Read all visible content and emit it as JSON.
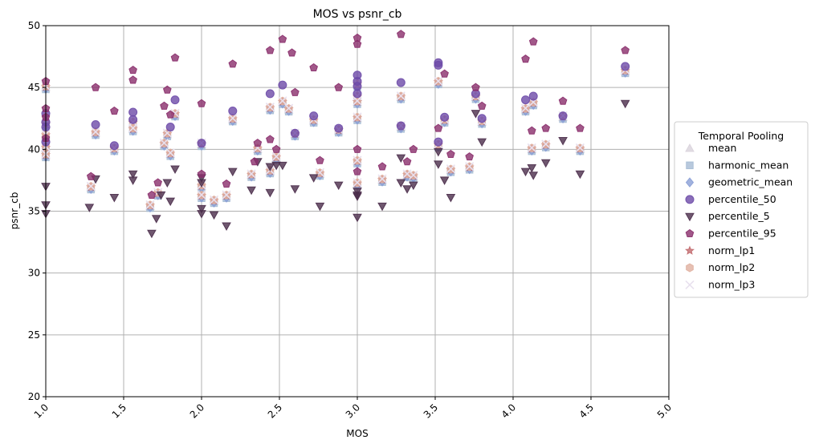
{
  "chart_data": {
    "type": "scatter",
    "title": "MOS vs psnr_cb",
    "xlabel": "MOS",
    "ylabel": "psnr_cb",
    "xlim": [
      1.0,
      5.0
    ],
    "ylim": [
      20,
      50
    ],
    "xticks": [
      "1.0",
      "1.5",
      "2.0",
      "2.5",
      "3.0",
      "3.5",
      "4.0",
      "4.5",
      "5.0"
    ],
    "yticks": [
      "20",
      "25",
      "30",
      "35",
      "40",
      "45",
      "50"
    ],
    "grid": true,
    "legend": {
      "title": "Temporal Pooling",
      "placement": "outside-right"
    },
    "base": {
      "x": [
        1.0,
        1.0,
        1.0,
        1.0,
        1.0,
        1.29,
        1.32,
        1.44,
        1.56,
        1.56,
        1.67,
        1.72,
        1.76,
        1.78,
        1.8,
        1.83,
        2.0,
        2.0,
        2.0,
        2.08,
        2.16,
        2.2,
        2.32,
        2.36,
        2.44,
        2.44,
        2.48,
        2.52,
        2.56,
        2.6,
        2.72,
        2.76,
        2.88,
        3.0,
        3.0,
        3.0,
        3.0,
        3.0,
        3.0,
        3.16,
        3.28,
        3.28,
        3.32,
        3.36,
        3.52,
        3.52,
        3.56,
        3.6,
        3.72,
        3.76,
        3.8,
        4.08,
        4.12,
        4.13,
        4.21,
        4.32,
        4.43,
        4.72
      ],
      "y": [
        39.5,
        40.1,
        41.1,
        42.0,
        45.0,
        36.9,
        41.3,
        40.0,
        41.6,
        42.1,
        35.4,
        36.4,
        40.4,
        41.2,
        39.6,
        42.8,
        36.2,
        37.0,
        40.4,
        35.8,
        36.2,
        42.4,
        37.9,
        40.0,
        38.2,
        43.3,
        39.3,
        43.8,
        43.2,
        41.2,
        42.3,
        38.0,
        41.5,
        37.2,
        39.0,
        42.5,
        43.8,
        44.2,
        45.2,
        37.5,
        41.8,
        44.2,
        37.9,
        37.8,
        40.3,
        45.4,
        42.3,
        38.3,
        38.5,
        44.2,
        42.2,
        43.2,
        40.0,
        43.7,
        40.3,
        42.6,
        40.0,
        46.3
      ]
    },
    "p5": [
      34.8,
      35.5,
      37.0,
      35.3,
      37.6,
      36.1,
      37.5,
      38.0,
      33.2,
      34.4,
      37.3,
      36.3,
      35.8,
      38.4,
      34.8,
      35.2,
      37.3,
      37.7,
      34.7,
      33.8,
      38.2,
      36.7,
      39.0,
      36.5,
      38.6,
      38.7,
      38.7,
      36.8,
      37.7,
      35.4,
      37.1,
      34.5,
      36.2,
      36.3,
      36.6,
      35.4,
      37.3,
      39.3,
      36.8,
      37.1,
      39.8,
      37.5,
      36.1,
      38.8,
      42.9,
      40.6,
      38.2,
      38.5,
      37.9,
      38.9,
      40.7,
      38.0,
      43.7
    ],
    "p5_x": [
      1.0,
      1.0,
      1.0,
      1.28,
      1.32,
      1.44,
      1.56,
      1.56,
      1.68,
      1.71,
      1.78,
      1.74,
      1.8,
      1.83,
      2.0,
      2.0,
      2.0,
      2.0,
      2.08,
      2.16,
      2.2,
      2.32,
      2.36,
      2.44,
      2.44,
      2.48,
      2.52,
      2.6,
      2.72,
      2.76,
      2.88,
      3.0,
      3.0,
      3.0,
      3.0,
      3.16,
      3.28,
      3.28,
      3.32,
      3.36,
      3.52,
      3.56,
      3.6,
      3.52,
      3.76,
      3.8,
      4.08,
      4.12,
      4.13,
      4.21,
      4.32,
      4.43,
      4.72
    ],
    "p95_x": [
      1.0,
      1.0,
      1.0,
      1.0,
      1.29,
      1.32,
      1.44,
      1.56,
      1.56,
      1.68,
      1.72,
      1.76,
      1.78,
      1.8,
      1.83,
      2.0,
      2.0,
      2.2,
      2.16,
      2.34,
      2.36,
      2.44,
      2.44,
      2.48,
      2.52,
      2.58,
      2.6,
      2.72,
      2.76,
      2.88,
      3.0,
      3.0,
      3.0,
      3.0,
      3.16,
      3.28,
      3.32,
      3.36,
      3.52,
      3.56,
      3.6,
      3.72,
      3.76,
      3.8,
      4.08,
      4.12,
      4.13,
      4.21,
      4.32,
      4.43,
      4.72
    ],
    "p95": [
      45.5,
      43.3,
      42.6,
      40.9,
      37.8,
      45.0,
      43.1,
      46.4,
      45.6,
      36.3,
      37.3,
      43.5,
      44.8,
      42.8,
      47.4,
      43.7,
      38.0,
      46.9,
      37.2,
      39.0,
      40.5,
      48.0,
      40.8,
      40.0,
      48.9,
      47.8,
      44.6,
      46.6,
      39.1,
      45.0,
      49.0,
      48.5,
      40.0,
      38.2,
      38.6,
      49.3,
      39.0,
      40.0,
      41.7,
      46.1,
      39.6,
      39.4,
      45.0,
      43.5,
      47.3,
      41.5,
      48.7,
      41.7,
      43.9,
      41.7,
      48.0
    ],
    "p50_x": [
      1.0,
      1.0,
      1.0,
      1.0,
      1.32,
      1.44,
      1.56,
      1.56,
      1.8,
      1.83,
      2.0,
      2.2,
      2.44,
      2.52,
      2.6,
      2.72,
      2.88,
      3.0,
      3.0,
      3.0,
      3.0,
      3.28,
      3.28,
      3.52,
      3.52,
      3.52,
      3.56,
      3.76,
      3.8,
      4.08,
      4.13,
      4.32,
      4.72
    ],
    "p50": [
      41.8,
      42.2,
      42.9,
      40.6,
      42.0,
      40.3,
      43.0,
      42.4,
      41.8,
      44.0,
      40.5,
      43.1,
      44.5,
      45.2,
      41.3,
      42.7,
      41.7,
      46.0,
      45.5,
      45.1,
      44.5,
      45.4,
      41.9,
      47.0,
      46.8,
      40.6,
      42.6,
      44.5,
      42.5,
      44.0,
      44.3,
      42.7,
      46.7
    ]
  },
  "legend_entries": [
    {
      "label": "mean",
      "marker": "triangle-up",
      "color": "#d9d3dc"
    },
    {
      "label": "harmonic_mean",
      "marker": "square",
      "color": "#a6bcd4"
    },
    {
      "label": "geometric_mean",
      "marker": "diamond",
      "color": "#8a9fd6"
    },
    {
      "label": "percentile_50",
      "marker": "circle",
      "color": "#6d4aa8"
    },
    {
      "label": "percentile_5",
      "marker": "triangle-down",
      "color": "#4b2d4b"
    },
    {
      "label": "percentile_95",
      "marker": "pentagon",
      "color": "#8a2e6c"
    },
    {
      "label": "norm_lp1",
      "marker": "star",
      "color": "#c26a6e"
    },
    {
      "label": "norm_lp2",
      "marker": "hexagon",
      "color": "#e0b0a0"
    },
    {
      "label": "norm_lp3",
      "marker": "x",
      "color": "#e8e0ee"
    }
  ]
}
